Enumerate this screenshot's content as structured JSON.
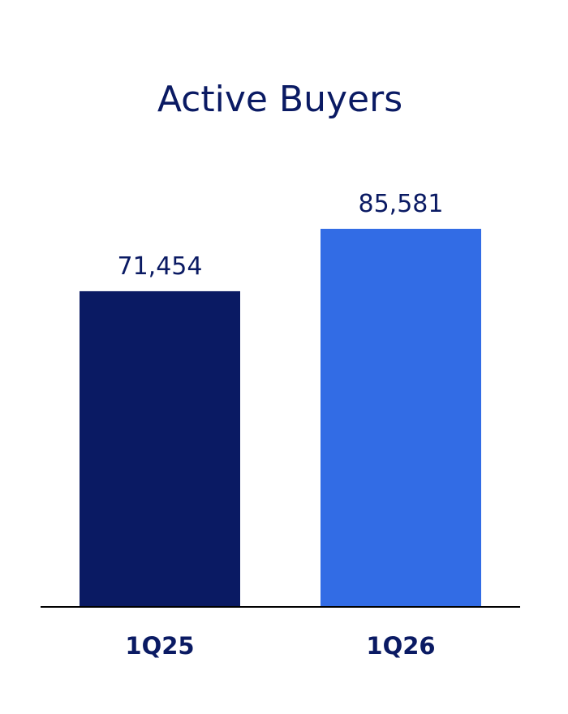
{
  "chart_data": {
    "type": "bar",
    "title": "Active Buyers",
    "categories": [
      "1Q25",
      "1Q26"
    ],
    "values": [
      71454,
      85581
    ],
    "value_labels": [
      "71,454",
      "85,581"
    ],
    "ylim": [
      0,
      100000
    ],
    "grid": false,
    "legend": "none"
  },
  "colors": {
    "title": "#0a1a63",
    "text": "#0a1a63",
    "axis": "#000000",
    "bars": [
      "#0a1a63",
      "#326ce5"
    ]
  }
}
